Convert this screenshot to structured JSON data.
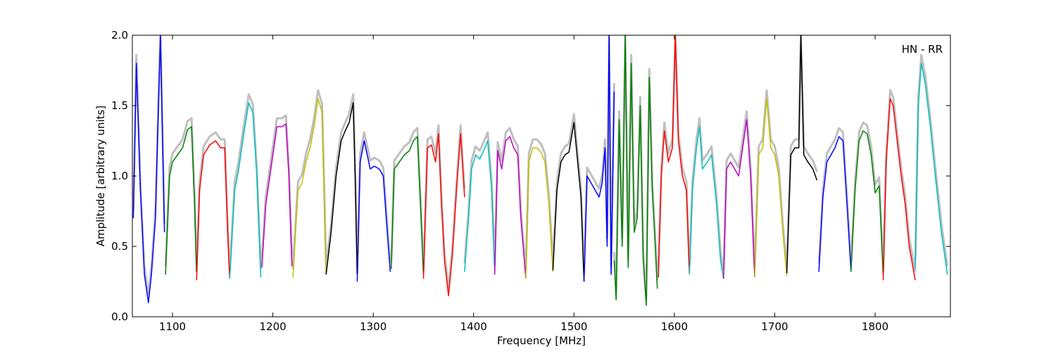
{
  "chart_data": {
    "type": "line",
    "title": "",
    "annotation": "HN - RR",
    "xlabel": "Frequency [MHz]",
    "ylabel": "Amplitude [arbitrary units]",
    "xlim": [
      1060,
      1875
    ],
    "ylim": [
      0,
      2.0
    ],
    "x_ticks": [
      1100,
      1200,
      1300,
      1400,
      1500,
      1600,
      1700,
      1800
    ],
    "x_tick_labels": [
      "1100",
      "1200",
      "1300",
      "1400",
      "1500",
      "1600",
      "1700",
      "1800"
    ],
    "y_ticks": [
      0.0,
      0.5,
      1.0,
      1.5,
      2.0
    ],
    "y_tick_labels": [
      "0.0",
      "0.5",
      "1.0",
      "1.5",
      "2.0"
    ],
    "grid": false,
    "background_color": "#bfbfbf",
    "series": [
      {
        "color": "#0000ff",
        "x": [
          1061,
          1064,
          1068,
          1072,
          1076,
          1079,
          1083,
          1086,
          1088,
          1092
        ],
        "y": [
          0.7,
          1.8,
          0.9,
          0.3,
          0.1,
          0.3,
          0.7,
          1.5,
          2.0,
          0.6
        ]
      },
      {
        "color": "#008000",
        "x": [
          1093,
          1097,
          1100,
          1105,
          1110,
          1115,
          1119,
          1122,
          1124
        ],
        "y": [
          0.3,
          1.0,
          1.1,
          1.15,
          1.2,
          1.33,
          1.35,
          0.8,
          0.32
        ]
      },
      {
        "color": "#ff0000",
        "x": [
          1124,
          1127,
          1131,
          1137,
          1143,
          1148,
          1152,
          1155,
          1157
        ],
        "y": [
          0.26,
          0.9,
          1.15,
          1.22,
          1.25,
          1.2,
          1.2,
          0.6,
          0.27
        ]
      },
      {
        "color": "#00bfbf",
        "x": [
          1157,
          1162,
          1166,
          1171,
          1176,
          1180,
          1184,
          1188
        ],
        "y": [
          0.27,
          0.9,
          1.05,
          1.3,
          1.52,
          1.45,
          1.0,
          0.28
        ]
      },
      {
        "color": "#bf00bf",
        "x": [
          1189,
          1193,
          1199,
          1204,
          1209,
          1213,
          1216,
          1219
        ],
        "y": [
          0.35,
          0.8,
          1.1,
          1.35,
          1.35,
          1.37,
          1.0,
          0.36
        ]
      },
      {
        "color": "#bfbf00",
        "x": [
          1220,
          1225,
          1229,
          1233,
          1237,
          1241,
          1245,
          1249,
          1251,
          1253
        ],
        "y": [
          0.28,
          0.9,
          0.95,
          1.1,
          1.2,
          1.35,
          1.55,
          1.45,
          0.9,
          0.3
        ]
      },
      {
        "color": "#000000",
        "x": [
          1253,
          1258,
          1263,
          1268,
          1272,
          1276,
          1280,
          1282,
          1284
        ],
        "y": [
          0.3,
          0.6,
          1.0,
          1.25,
          1.32,
          1.38,
          1.52,
          1.0,
          0.3
        ]
      },
      {
        "color": "#0000ff",
        "x": [
          1284,
          1287,
          1291,
          1294,
          1297,
          1301,
          1306,
          1310,
          1314,
          1317
        ],
        "y": [
          0.25,
          1.1,
          1.25,
          1.15,
          1.05,
          1.07,
          1.05,
          1.0,
          0.6,
          0.32
        ]
      },
      {
        "color": "#008000",
        "x": [
          1318,
          1321,
          1326,
          1331,
          1336,
          1340,
          1344,
          1347,
          1350
        ],
        "y": [
          0.34,
          1.05,
          1.1,
          1.15,
          1.18,
          1.25,
          1.28,
          0.8,
          0.3
        ]
      },
      {
        "color": "#ff0000",
        "x": [
          1350,
          1354,
          1358,
          1362,
          1365,
          1368,
          1371,
          1375,
          1379,
          1383,
          1387,
          1391
        ],
        "y": [
          0.27,
          1.2,
          1.22,
          1.1,
          1.3,
          0.8,
          0.4,
          0.15,
          0.45,
          0.9,
          1.3,
          0.85
        ]
      },
      {
        "color": "#00bfbf",
        "x": [
          1391,
          1395,
          1398,
          1402,
          1406,
          1410,
          1414,
          1418,
          1421
        ],
        "y": [
          0.32,
          0.7,
          1.05,
          1.15,
          1.12,
          1.18,
          1.25,
          0.9,
          0.32
        ]
      },
      {
        "color": "#bf00bf",
        "x": [
          1421,
          1424,
          1428,
          1432,
          1436,
          1440,
          1444,
          1447,
          1452
        ],
        "y": [
          0.3,
          1.18,
          1.05,
          1.25,
          1.28,
          1.2,
          1.15,
          0.7,
          0.27
        ]
      },
      {
        "color": "#bfbf00",
        "x": [
          1452,
          1455,
          1459,
          1463,
          1467,
          1471,
          1475,
          1479
        ],
        "y": [
          0.27,
          1.1,
          1.2,
          1.2,
          1.17,
          1.1,
          0.8,
          0.32
        ]
      },
      {
        "color": "#000000",
        "x": [
          1479,
          1483,
          1487,
          1491,
          1495,
          1500,
          1503,
          1507,
          1510
        ],
        "y": [
          0.33,
          0.9,
          1.1,
          1.15,
          1.17,
          1.38,
          1.15,
          0.85,
          0.25
        ]
      },
      {
        "color": "#0000ff",
        "x": [
          1510,
          1513,
          1517,
          1521,
          1525,
          1528,
          1531,
          1533,
          1535,
          1537,
          1540
        ],
        "y": [
          0.25,
          1.0,
          0.95,
          0.9,
          0.85,
          0.95,
          1.2,
          0.5,
          2.0,
          0.3,
          1.6
        ]
      },
      {
        "color": "#008000",
        "x": [
          1540,
          1542,
          1545,
          1548,
          1551,
          1554,
          1557,
          1560,
          1563,
          1566,
          1569,
          1572,
          1575,
          1578,
          1581,
          1583
        ],
        "y": [
          0.4,
          0.12,
          1.4,
          0.5,
          2.0,
          0.35,
          1.8,
          0.6,
          0.7,
          1.5,
          0.4,
          0.08,
          1.7,
          0.9,
          0.5,
          0.2
        ]
      },
      {
        "color": "#ff0000",
        "x": [
          1584,
          1587,
          1590,
          1594,
          1598,
          1601,
          1604,
          1608,
          1612,
          1615
        ],
        "y": [
          0.28,
          1.0,
          1.32,
          1.1,
          1.2,
          2.0,
          1.25,
          1.0,
          0.9,
          0.3
        ]
      },
      {
        "color": "#00bfbf",
        "x": [
          1615,
          1618,
          1622,
          1625,
          1628,
          1633,
          1637,
          1642,
          1646,
          1649
        ],
        "y": [
          0.3,
          0.9,
          1.2,
          1.35,
          1.05,
          1.1,
          1.15,
          0.8,
          0.4,
          0.27
        ]
      },
      {
        "color": "#bf00bf",
        "x": [
          1649,
          1652,
          1656,
          1660,
          1664,
          1668,
          1672,
          1676,
          1680
        ],
        "y": [
          0.27,
          1.05,
          1.1,
          1.05,
          1.0,
          1.2,
          1.4,
          1.0,
          0.28
        ]
      },
      {
        "color": "#bfbf00",
        "x": [
          1680,
          1684,
          1688,
          1692,
          1696,
          1700,
          1704,
          1708,
          1712
        ],
        "y": [
          0.28,
          1.15,
          1.2,
          1.55,
          1.2,
          1.15,
          1.0,
          0.6,
          0.29
        ]
      },
      {
        "color": "#000000",
        "x": [
          1712,
          1716,
          1720,
          1724,
          1726,
          1729,
          1733,
          1738,
          1742
        ],
        "y": [
          0.31,
          1.15,
          1.2,
          1.2,
          2.0,
          1.15,
          1.1,
          1.05,
          0.97
        ]
      },
      {
        "color": "#0000ff",
        "x": [
          1744,
          1748,
          1752,
          1756,
          1760,
          1764,
          1768,
          1772,
          1776
        ],
        "y": [
          0.32,
          0.85,
          1.1,
          1.15,
          1.2,
          1.28,
          1.25,
          0.8,
          0.33
        ]
      },
      {
        "color": "#008000",
        "x": [
          1776,
          1780,
          1784,
          1788,
          1792,
          1796,
          1800,
          1804,
          1808
        ],
        "y": [
          0.32,
          0.9,
          1.25,
          1.32,
          1.3,
          1.15,
          0.88,
          0.93,
          0.3
        ]
      },
      {
        "color": "#ff0000",
        "x": [
          1808,
          1811,
          1815,
          1818,
          1822,
          1826,
          1830,
          1834,
          1840
        ],
        "y": [
          0.26,
          1.1,
          1.55,
          1.5,
          1.25,
          1.0,
          0.8,
          0.5,
          0.26
        ]
      },
      {
        "color": "#00bfbf",
        "x": [
          1840,
          1843,
          1846,
          1850,
          1855,
          1860,
          1866,
          1872
        ],
        "y": [
          0.34,
          1.5,
          1.8,
          1.65,
          1.35,
          1.0,
          0.6,
          0.3
        ]
      }
    ]
  }
}
